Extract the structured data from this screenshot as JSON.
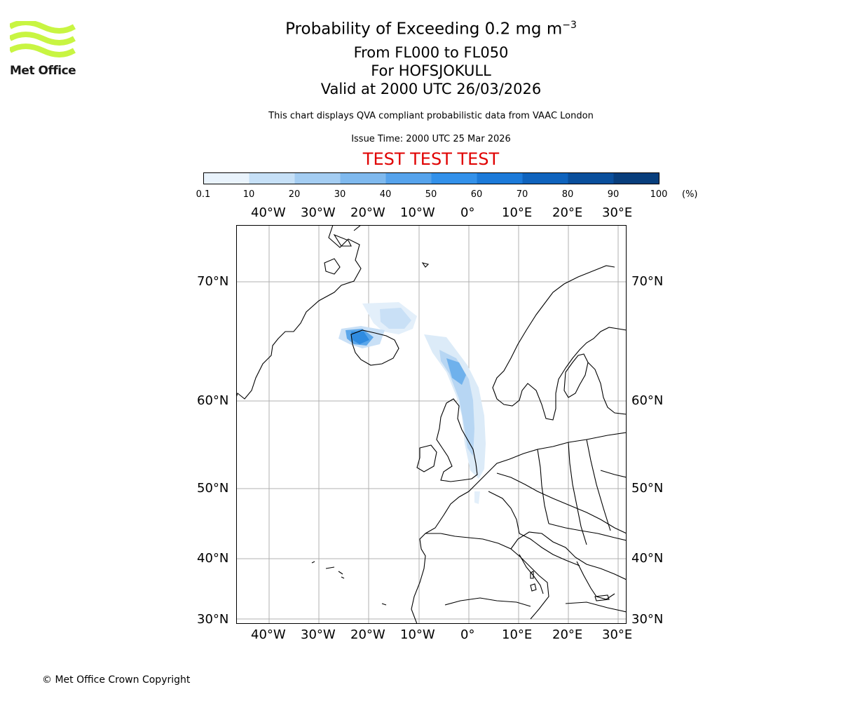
{
  "logo": {
    "text": "Met Office",
    "color": "#c8f542"
  },
  "header": {
    "title_prefix": "Probability of Exceeding 0.2 mg m",
    "title_superscript": "−3",
    "flight_levels": "From FL000 to FL050",
    "location": "For HOFSJOKULL",
    "valid": "Valid at 2000 UTC 26/03/2026",
    "description": "This chart displays QVA compliant probabilistic data from VAAC London",
    "issue_time": "Issue Time: 2000 UTC 25 Mar 2026",
    "test_banner": "TEST TEST TEST"
  },
  "colorbar": {
    "ticks": [
      "0.1",
      "10",
      "20",
      "30",
      "40",
      "50",
      "60",
      "70",
      "80",
      "90",
      "100"
    ],
    "unit": "(%)",
    "colors": [
      "#e9f3fc",
      "#c6e0f7",
      "#a4cdf2",
      "#7fb9ee",
      "#56a3ec",
      "#3391ea",
      "#1c7ad9",
      "#0f63bd",
      "#0a4f9c",
      "#083e7c",
      "#062b58"
    ]
  },
  "map": {
    "lon_ticks": [
      "40°W",
      "30°W",
      "20°W",
      "10°W",
      "0°",
      "10°E",
      "20°E",
      "30°E"
    ],
    "lat_ticks": [
      "70°N",
      "60°N",
      "50°N",
      "40°N",
      "30°N"
    ],
    "grid_color": "#b0b0b0",
    "plume_color": "#2f8be0"
  },
  "footer": {
    "copyright": "© Met Office Crown Copyright"
  }
}
